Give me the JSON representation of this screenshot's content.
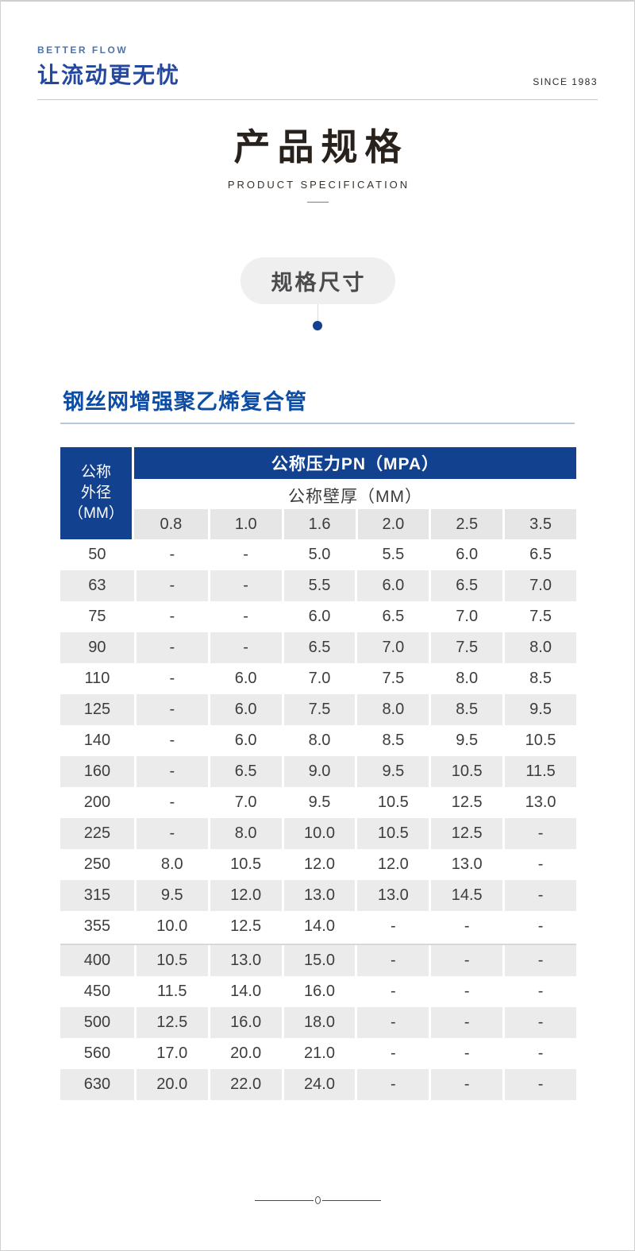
{
  "header": {
    "brand_en": "BETTER FLOW",
    "brand_slogan": "让流动更无忧",
    "since": "SINCE 1983"
  },
  "title": {
    "main": "产品规格",
    "subtitle": "PRODUCT SPECIFICATION"
  },
  "badge": {
    "label": "规格尺寸"
  },
  "section": {
    "heading": "钢丝网增强聚乙烯复合管"
  },
  "table": {
    "corner_header": "公称\n外径\n（MM）",
    "pressure_header": "公称压力PN（MPA）",
    "thickness_header": "公称壁厚（MM）",
    "columns": [
      "0.8",
      "1.0",
      "1.6",
      "2.0",
      "2.5",
      "3.5"
    ],
    "rows": [
      {
        "od": "50",
        "values": [
          "-",
          "-",
          "5.0",
          "5.5",
          "6.0",
          "6.5"
        ]
      },
      {
        "od": "63",
        "values": [
          "-",
          "-",
          "5.5",
          "6.0",
          "6.5",
          "7.0"
        ]
      },
      {
        "od": "75",
        "values": [
          "-",
          "-",
          "6.0",
          "6.5",
          "7.0",
          "7.5"
        ]
      },
      {
        "od": "90",
        "values": [
          "-",
          "-",
          "6.5",
          "7.0",
          "7.5",
          "8.0"
        ]
      },
      {
        "od": "110",
        "values": [
          "-",
          "6.0",
          "7.0",
          "7.5",
          "8.0",
          "8.5"
        ]
      },
      {
        "od": "125",
        "values": [
          "-",
          "6.0",
          "7.5",
          "8.0",
          "8.5",
          "9.5"
        ]
      },
      {
        "od": "140",
        "values": [
          "-",
          "6.0",
          "8.0",
          "8.5",
          "9.5",
          "10.5"
        ]
      },
      {
        "od": "160",
        "values": [
          "-",
          "6.5",
          "9.0",
          "9.5",
          "10.5",
          "11.5"
        ]
      },
      {
        "od": "200",
        "values": [
          "-",
          "7.0",
          "9.5",
          "10.5",
          "12.5",
          "13.0"
        ]
      },
      {
        "od": "225",
        "values": [
          "-",
          "8.0",
          "10.0",
          "10.5",
          "12.5",
          "-"
        ]
      },
      {
        "od": "250",
        "values": [
          "8.0",
          "10.5",
          "12.0",
          "12.0",
          "13.0",
          "-"
        ]
      },
      {
        "od": "315",
        "values": [
          "9.5",
          "12.0",
          "13.0",
          "13.0",
          "14.5",
          "-"
        ]
      },
      {
        "od": "355",
        "values": [
          "10.0",
          "12.5",
          "14.0",
          "-",
          "-",
          "-"
        ]
      },
      {
        "od": "400",
        "values": [
          "10.5",
          "13.0",
          "15.0",
          "-",
          "-",
          "-"
        ]
      },
      {
        "od": "450",
        "values": [
          "11.5",
          "14.0",
          "16.0",
          "-",
          "-",
          "-"
        ]
      },
      {
        "od": "500",
        "values": [
          "12.5",
          "16.0",
          "18.0",
          "-",
          "-",
          "-"
        ]
      },
      {
        "od": "560",
        "values": [
          "17.0",
          "20.0",
          "21.0",
          "-",
          "-",
          "-"
        ]
      },
      {
        "od": "630",
        "values": [
          "20.0",
          "22.0",
          "24.0",
          "-",
          "-",
          "-"
        ]
      }
    ],
    "divider_before_od": "400"
  },
  "colors": {
    "primary_blue": "#12418f",
    "heading_blue": "#0d4da5",
    "brand_blue": "#24479f",
    "stripe_gray": "#ebebeb"
  }
}
